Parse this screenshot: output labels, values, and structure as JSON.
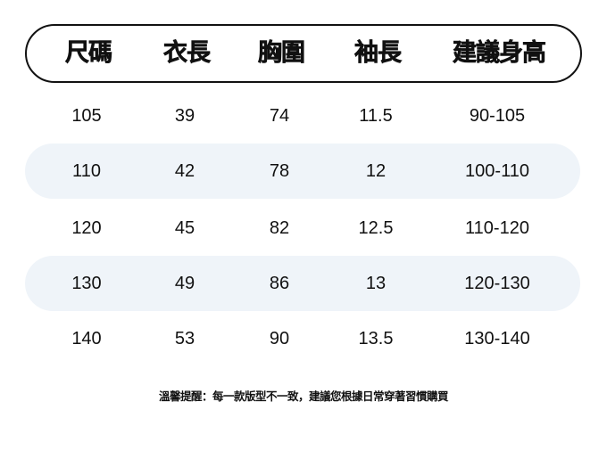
{
  "header": [
    "尺碼",
    "衣長",
    "胸圍",
    "袖長",
    "建議身高"
  ],
  "rows": [
    [
      "105",
      "39",
      "74",
      "11.5",
      "90-105"
    ],
    [
      "110",
      "42",
      "78",
      "12",
      "100-110"
    ],
    [
      "120",
      "45",
      "82",
      "12.5",
      "110-120"
    ],
    [
      "130",
      "49",
      "86",
      "13",
      "120-130"
    ],
    [
      "140",
      "53",
      "90",
      "13.5",
      "130-140"
    ]
  ],
  "note": "溫馨提醒：每一款版型不一致，建議您根據日常穿著習慣購買",
  "colors": {
    "stripe": "#eff4f9",
    "border": "#111111"
  }
}
